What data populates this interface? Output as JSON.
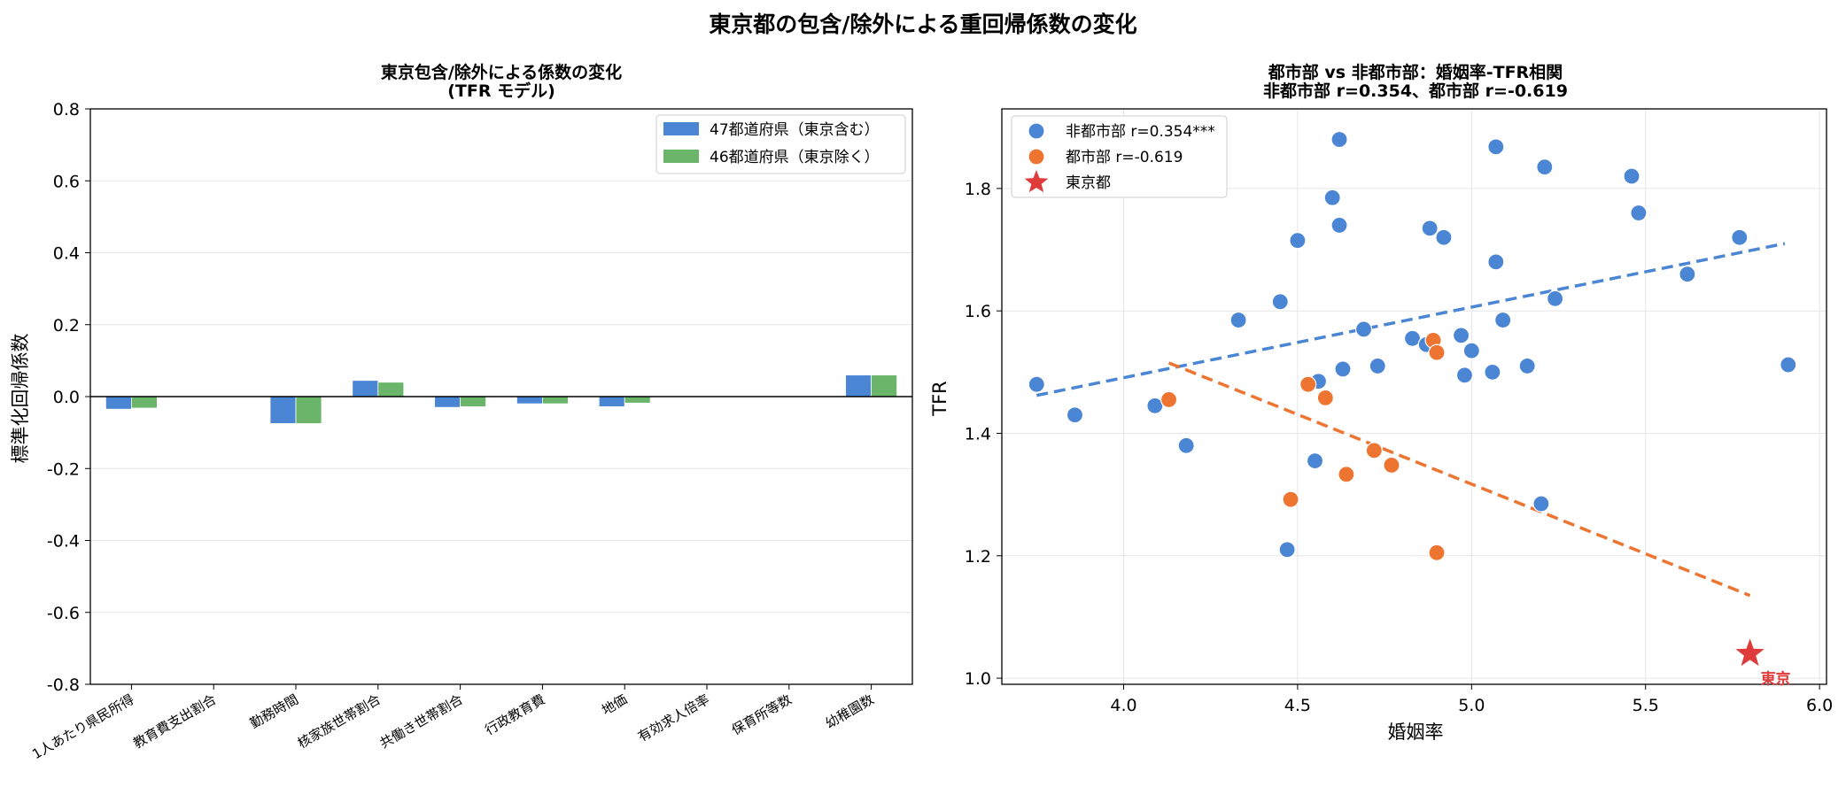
{
  "figure": {
    "suptitle": "東京都の包含/除外による重回帰係数の変化"
  },
  "colors": {
    "blue": "#4a86d4",
    "green": "#6bb56b",
    "orange": "#ed7431",
    "red": "#e03b3b",
    "grid": "#e6e6e6"
  },
  "chart_data": [
    {
      "type": "bar",
      "title_lines": [
        "東京包含/除外による係数の変化",
        "(TFR モデル)"
      ],
      "ylabel": "標準化回帰係数",
      "xlabel": "",
      "ylim": [
        -0.8,
        0.8
      ],
      "yticks": [
        -0.8,
        -0.6,
        -0.4,
        -0.2,
        0.0,
        0.2,
        0.4,
        0.6,
        0.8
      ],
      "grid": "y",
      "legend_position": "top-right",
      "categories": [
        "1人あたり県民所得",
        "教育費支出割合",
        "勤務時間",
        "核家族世帯割合",
        "共働き世帯割合",
        "行政教育費",
        "地価",
        "有効求人倍率",
        "保育所等数",
        "幼稚園数"
      ],
      "series": [
        {
          "name": "47都道府県（東京含む）",
          "color": "#4a86d4",
          "values": [
            -0.035,
            0.0,
            -0.075,
            0.045,
            -0.03,
            -0.02,
            -0.028,
            0.0,
            0.0,
            0.06
          ]
        },
        {
          "name": "46都道府県（東京除く）",
          "color": "#6bb56b",
          "values": [
            -0.032,
            0.0,
            -0.075,
            0.04,
            -0.028,
            -0.02,
            -0.018,
            0.0,
            0.0,
            0.06
          ]
        }
      ]
    },
    {
      "type": "scatter",
      "title_lines": [
        "都市部 vs 非都市部：婚姻率-TFR相関",
        "非都市部 r=0.354、都市部 r=-0.619"
      ],
      "xlabel": "婚姻率",
      "ylabel": "TFR",
      "xlim": [
        3.65,
        6.02
      ],
      "ylim": [
        0.99,
        1.93
      ],
      "xticks": [
        4.0,
        4.5,
        5.0,
        5.5,
        6.0
      ],
      "yticks": [
        1.0,
        1.2,
        1.4,
        1.6,
        1.8
      ],
      "grid": "both",
      "legend_position": "top-left",
      "series": [
        {
          "name": "非都市部 r=0.354***",
          "color": "#4a86d4",
          "points": [
            [
              3.75,
              1.48
            ],
            [
              3.86,
              1.43
            ],
            [
              4.09,
              1.445
            ],
            [
              4.18,
              1.38
            ],
            [
              4.33,
              1.585
            ],
            [
              4.45,
              1.615
            ],
            [
              4.47,
              1.21
            ],
            [
              4.5,
              1.715
            ],
            [
              4.55,
              1.355
            ],
            [
              4.56,
              1.485
            ],
            [
              4.6,
              1.785
            ],
            [
              4.62,
              1.74
            ],
            [
              4.62,
              1.88
            ],
            [
              4.63,
              1.505
            ],
            [
              4.69,
              1.57
            ],
            [
              4.73,
              1.51
            ],
            [
              4.83,
              1.555
            ],
            [
              4.87,
              1.545
            ],
            [
              4.88,
              1.735
            ],
            [
              4.92,
              1.72
            ],
            [
              4.97,
              1.56
            ],
            [
              4.98,
              1.495
            ],
            [
              5.0,
              1.535
            ],
            [
              5.06,
              1.5
            ],
            [
              5.07,
              1.68
            ],
            [
              5.07,
              1.868
            ],
            [
              5.09,
              1.585
            ],
            [
              5.16,
              1.51
            ],
            [
              5.2,
              1.285
            ],
            [
              5.21,
              1.835
            ],
            [
              5.24,
              1.62
            ],
            [
              5.46,
              1.82
            ],
            [
              5.48,
              1.76
            ],
            [
              5.62,
              1.66
            ],
            [
              5.77,
              1.72
            ],
            [
              5.91,
              1.512
            ]
          ]
        },
        {
          "name": "都市部 r=-0.619",
          "color": "#ed7431",
          "points": [
            [
              4.13,
              1.455
            ],
            [
              4.48,
              1.292
            ],
            [
              4.53,
              1.48
            ],
            [
              4.58,
              1.458
            ],
            [
              4.64,
              1.333
            ],
            [
              4.72,
              1.372
            ],
            [
              4.77,
              1.348
            ],
            [
              4.89,
              1.552
            ],
            [
              4.9,
              1.532
            ],
            [
              4.9,
              1.205
            ]
          ]
        },
        {
          "name": "東京都",
          "color": "#e03b3b",
          "marker": "star",
          "points": [
            [
              5.8,
              1.04
            ]
          ]
        }
      ],
      "trendlines": [
        {
          "series": "非都市部",
          "color": "#4a86d4",
          "x": [
            3.75,
            5.9
          ],
          "y": [
            1.462,
            1.71
          ]
        },
        {
          "series": "都市部",
          "color": "#ed7431",
          "x": [
            4.13,
            5.8
          ],
          "y": [
            1.515,
            1.135
          ]
        }
      ],
      "annotations": [
        {
          "text": "東京",
          "x": 5.8,
          "y": 1.04,
          "color": "#e03b3b"
        }
      ]
    }
  ]
}
